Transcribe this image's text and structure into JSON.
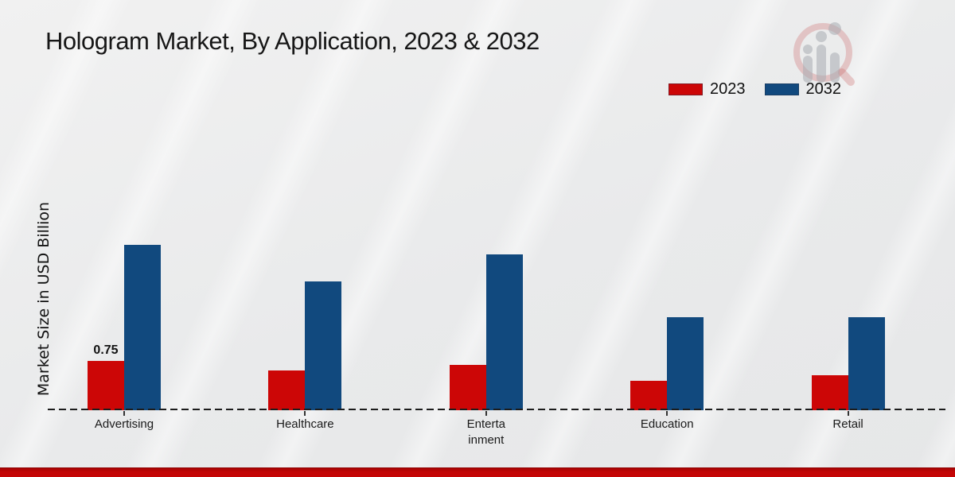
{
  "chart_data": {
    "type": "bar",
    "title": "Hologram Market, By Application, 2023 & 2032",
    "xlabel": "",
    "ylabel": "Market Size in USD Billion",
    "categories": [
      "Advertising",
      "Healthcare",
      "Entertainment",
      "Education",
      "Retail"
    ],
    "category_display": [
      "Advertising",
      "Healthcare",
      "Enterta\ninment",
      "Education",
      "Retail"
    ],
    "series": [
      {
        "name": "2023",
        "color": "#cc0606",
        "values": [
          0.75,
          0.6,
          0.68,
          0.45,
          0.53
        ]
      },
      {
        "name": "2032",
        "color": "#11497e",
        "values": [
          2.5,
          1.95,
          2.35,
          1.4,
          1.4
        ]
      }
    ],
    "bar_labels": [
      {
        "series": "2023",
        "category": "Advertising",
        "text": "0.75"
      }
    ],
    "unit": "USD Billion",
    "ylim": [
      0,
      3.2
    ],
    "grid": false,
    "legend_position": "top-right",
    "baseline_style": "dashed"
  },
  "icons": {
    "watermark": "magnifier-bar-chart-logo"
  },
  "footer": {
    "color": "#c40505"
  }
}
